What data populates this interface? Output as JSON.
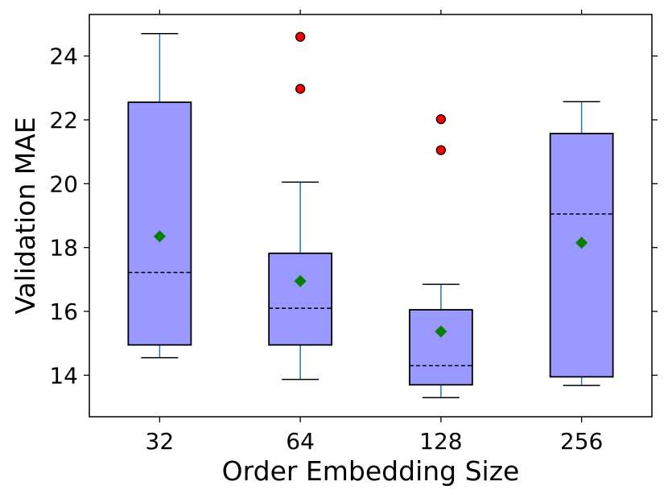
{
  "chart_data": {
    "type": "box",
    "title": "",
    "xlabel": "Order Embedding Size",
    "ylabel": "Validation MAE",
    "categories": [
      "32",
      "64",
      "128",
      "256"
    ],
    "ylim": [
      12.7,
      25.3
    ],
    "yticks": [
      14,
      16,
      18,
      20,
      22,
      24
    ],
    "ytick_labels": [
      "14",
      "16",
      "18",
      "20",
      "22",
      "24"
    ],
    "boxes": [
      {
        "category": "32",
        "whisker_low": 14.55,
        "q1": 14.95,
        "median": 17.22,
        "q3": 22.55,
        "whisker_high": 24.7,
        "mean": 18.35,
        "outliers": []
      },
      {
        "category": "64",
        "whisker_low": 13.87,
        "q1": 14.95,
        "median": 16.1,
        "q3": 17.82,
        "whisker_high": 20.05,
        "mean": 16.95,
        "outliers": [
          24.6,
          22.97
        ]
      },
      {
        "category": "128",
        "whisker_low": 13.3,
        "q1": 13.7,
        "median": 14.3,
        "q3": 16.05,
        "whisker_high": 16.85,
        "mean": 15.37,
        "outliers": [
          22.02,
          21.05
        ]
      },
      {
        "category": "256",
        "whisker_low": 13.68,
        "q1": 13.95,
        "median": 19.05,
        "q3": 21.57,
        "whisker_high": 22.57,
        "mean": 18.15,
        "outliers": []
      }
    ],
    "colors": {
      "box_fill": "#9999ff",
      "box_edge": "#000000",
      "whisker": "#1f77b4",
      "median": "#000000",
      "mean_marker": "#008000",
      "outlier": "#ff0000"
    },
    "median_style": "dashed",
    "mean_marker_shape": "diamond",
    "outlier_marker_shape": "circle",
    "grid": false,
    "legend": "none",
    "mirrored_ticks": true
  }
}
